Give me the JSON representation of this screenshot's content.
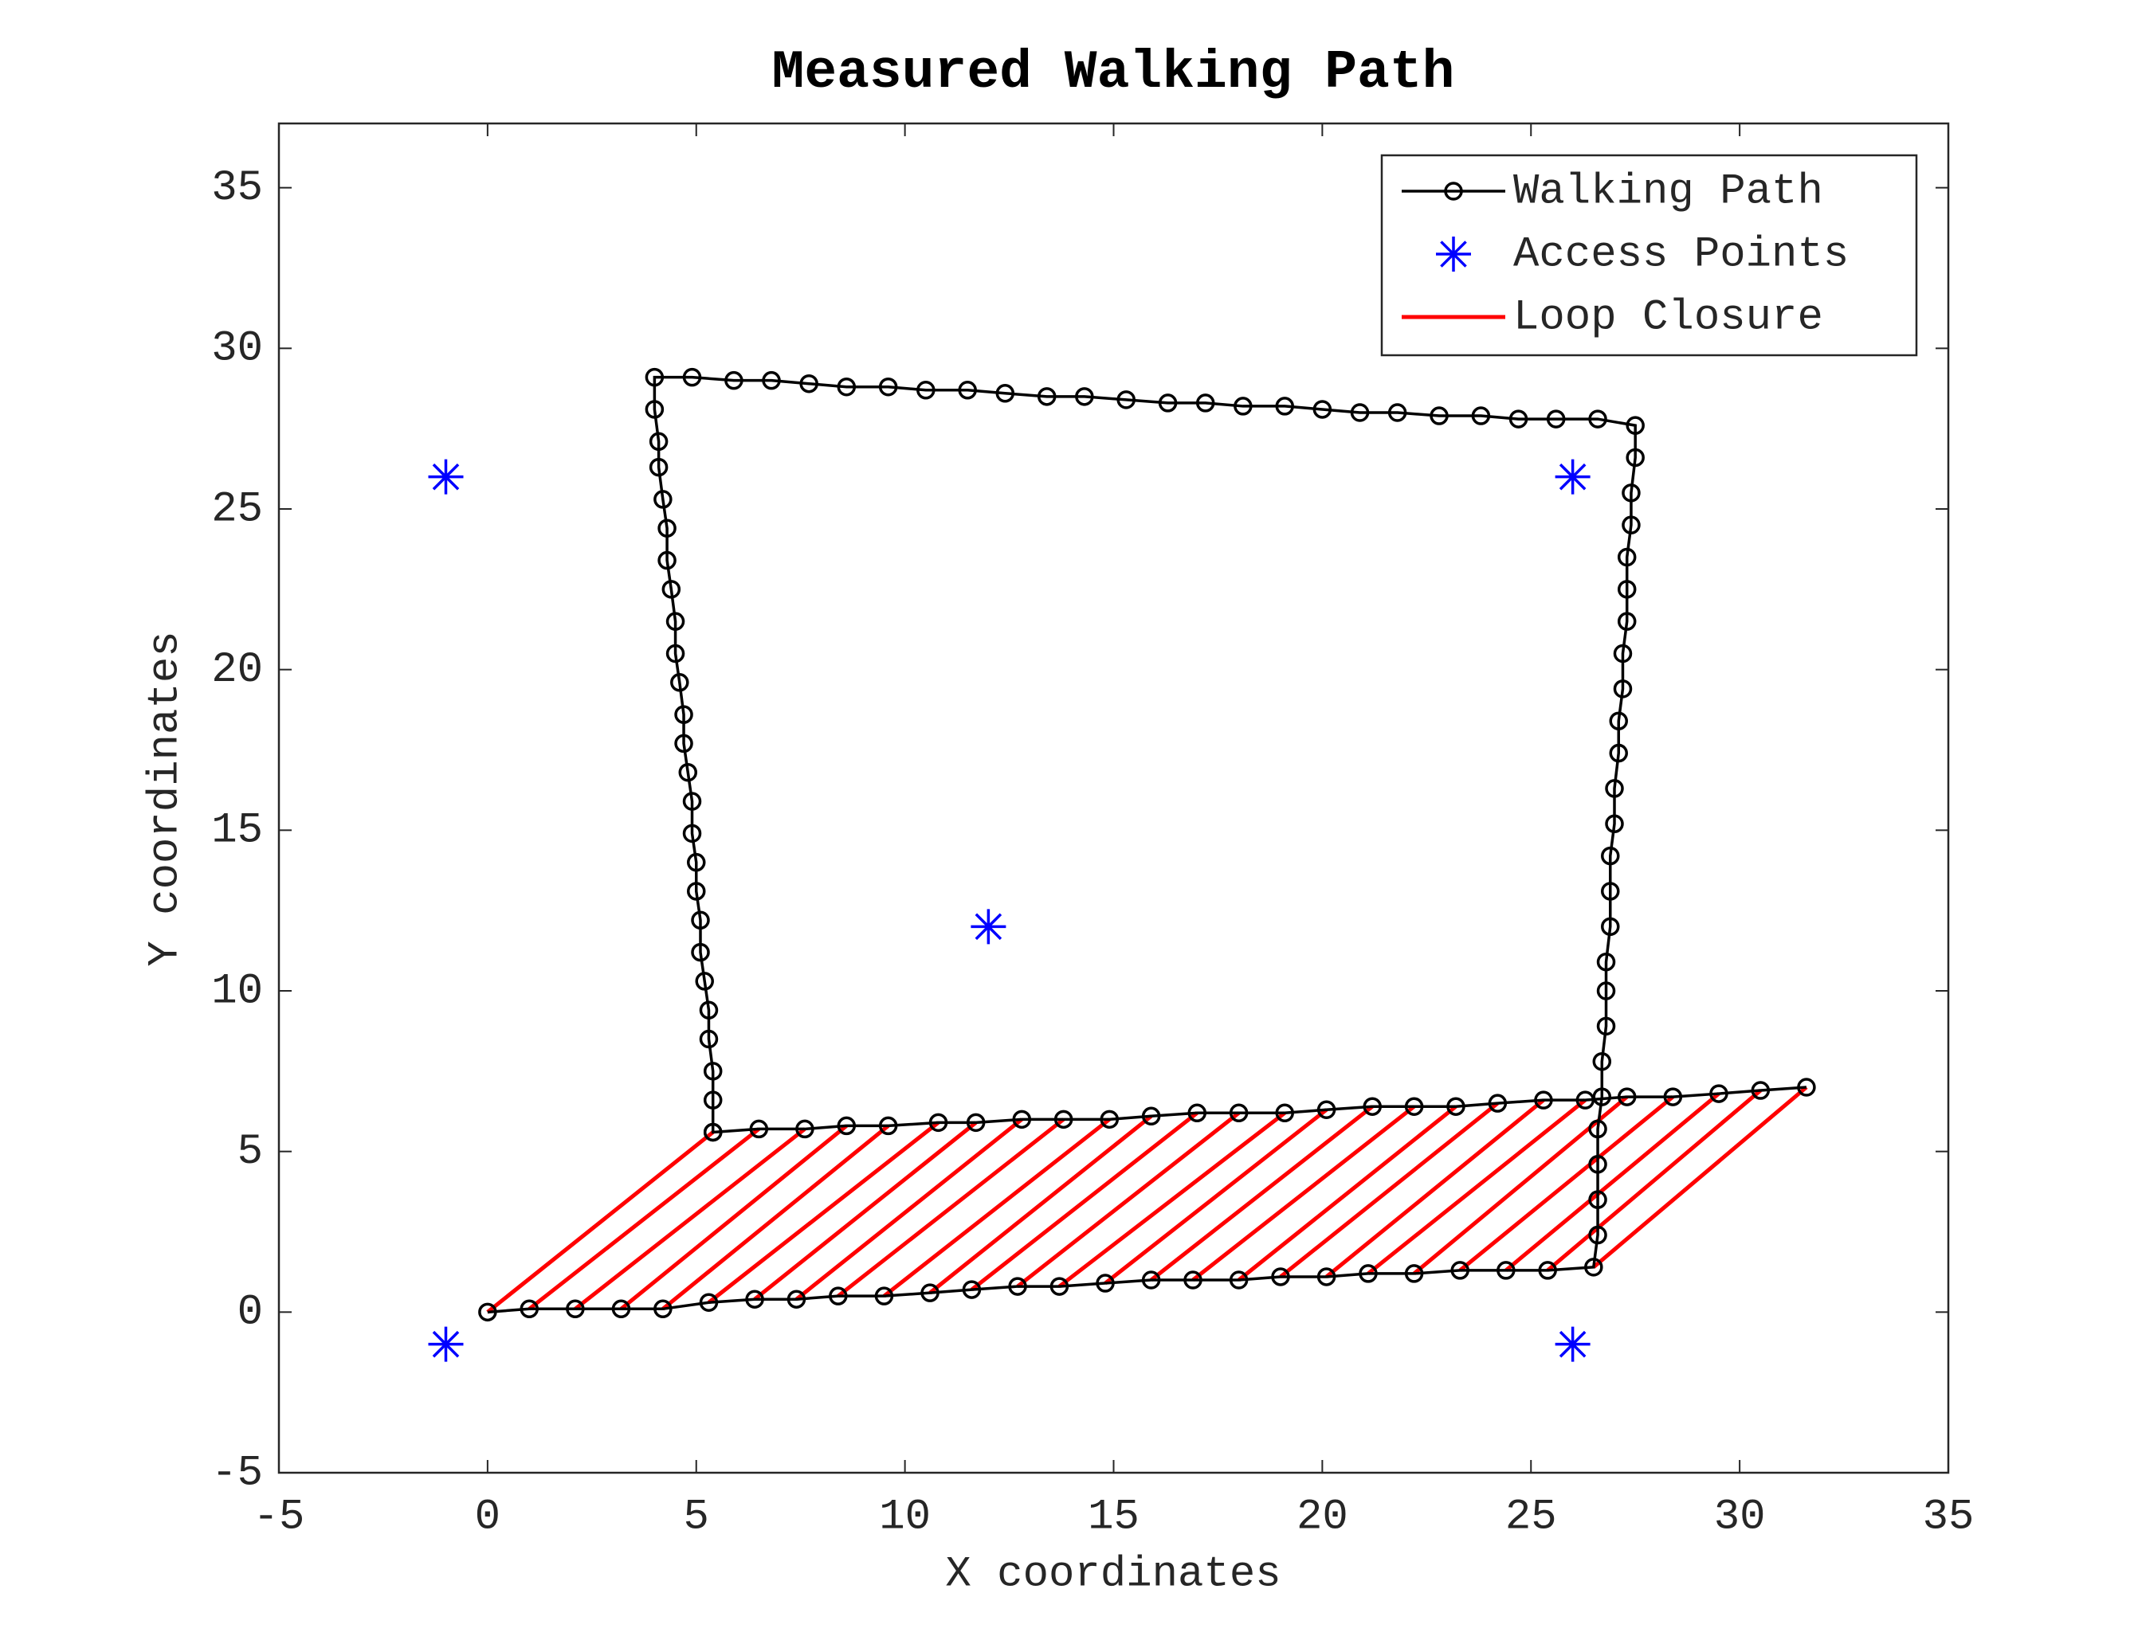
{
  "chart_data": {
    "type": "line",
    "title": "Measured Walking Path",
    "xlabel": "X coordinates",
    "ylabel": "Y coordinates",
    "xlim": [
      -5,
      35
    ],
    "ylim": [
      -5,
      37
    ],
    "xticks": [
      -5,
      0,
      5,
      10,
      15,
      20,
      25,
      30,
      35
    ],
    "yticks": [
      -5,
      0,
      5,
      10,
      15,
      20,
      25,
      30,
      35
    ],
    "grid": false,
    "legend": "upper right",
    "series": [
      {
        "name": "Walking Path",
        "type": "line",
        "marker": "o",
        "color": "#000000",
        "x": [
          0,
          1,
          2.1,
          3.2,
          4.2,
          5.3,
          6.4,
          7.4,
          8.4,
          9.5,
          10.6,
          11.6,
          12.7,
          13.7,
          14.8,
          15.9,
          16.9,
          18,
          19,
          20.1,
          21.1,
          22.2,
          23.3,
          24.4,
          25.4,
          26.5,
          26.6,
          26.6,
          26.6,
          26.6,
          26.7,
          26.7,
          26.8,
          26.8,
          26.8,
          26.9,
          26.9,
          26.9,
          27,
          27,
          27.1,
          27.1,
          27.2,
          27.2,
          27.3,
          27.3,
          27.3,
          27.4,
          27.4,
          27.5,
          27.5,
          26.6,
          25.6,
          24.7,
          23.8,
          22.8,
          21.8,
          20.9,
          20,
          19.1,
          18.1,
          17.2,
          16.3,
          15.3,
          14.3,
          13.4,
          12.4,
          11.5,
          10.5,
          9.6,
          8.6,
          7.7,
          6.8,
          5.9,
          4.9,
          4,
          4,
          4.1,
          4.1,
          4.2,
          4.3,
          4.3,
          4.4,
          4.5,
          4.5,
          4.6,
          4.7,
          4.7,
          4.8,
          4.9,
          4.9,
          5,
          5,
          5.1,
          5.1,
          5.2,
          5.3,
          5.3,
          5.4,
          5.4,
          5.4,
          5.4,
          6.5,
          7.6,
          8.6,
          9.6,
          10.8,
          11.7,
          12.8,
          13.8,
          14.9,
          15.9,
          17,
          18,
          19.1,
          20.1,
          21.2,
          22.2,
          23.2,
          24.2,
          25.3,
          26.3,
          27.3,
          28.4,
          29.5,
          30.5,
          31.6
        ],
        "y": [
          0,
          0.1,
          0.1,
          0.1,
          0.1,
          0.3,
          0.4,
          0.4,
          0.5,
          0.5,
          0.6,
          0.7,
          0.8,
          0.8,
          0.9,
          1,
          1,
          1,
          1.1,
          1.1,
          1.2,
          1.2,
          1.3,
          1.3,
          1.3,
          1.4,
          2.4,
          3.5,
          4.6,
          5.7,
          6.7,
          7.8,
          8.9,
          10,
          10.9,
          12,
          13.1,
          14.2,
          15.2,
          16.3,
          17.4,
          18.4,
          19.4,
          20.5,
          21.5,
          22.5,
          23.5,
          24.5,
          25.5,
          26.6,
          27.6,
          27.8,
          27.8,
          27.8,
          27.9,
          27.9,
          28,
          28,
          28.1,
          28.2,
          28.2,
          28.3,
          28.3,
          28.4,
          28.5,
          28.5,
          28.6,
          28.7,
          28.7,
          28.8,
          28.8,
          28.9,
          29,
          29,
          29.1,
          29.1,
          28.1,
          27.1,
          26.3,
          25.3,
          24.4,
          23.4,
          22.5,
          21.5,
          20.5,
          19.6,
          18.6,
          17.7,
          16.8,
          15.9,
          14.9,
          14,
          13.1,
          12.2,
          11.2,
          10.3,
          9.4,
          8.5,
          7.5,
          6.6,
          5.6,
          5.6,
          5.7,
          5.7,
          5.8,
          5.8,
          5.9,
          5.9,
          6,
          6,
          6,
          6.1,
          6.2,
          6.2,
          6.2,
          6.3,
          6.4,
          6.4,
          6.4,
          6.5,
          6.6,
          6.6,
          6.7,
          6.7,
          6.8,
          6.9,
          7
        ]
      },
      {
        "name": "Access Points",
        "type": "scatter",
        "marker": "*",
        "color": "#0000ff",
        "x": [
          -1,
          26,
          12,
          -1,
          26
        ],
        "y": [
          26,
          26,
          12,
          -1,
          -1
        ]
      },
      {
        "name": "Loop Closure",
        "type": "segments",
        "color": "#ff0000",
        "x1": [
          0,
          1,
          2.1,
          3.2,
          4.2,
          5.3,
          6.4,
          7.4,
          8.4,
          9.5,
          10.6,
          11.6,
          12.7,
          13.7,
          14.8,
          15.9,
          16.9,
          18,
          19,
          20.1,
          21.1,
          22.2,
          23.3,
          24.4,
          25.4,
          26.5
        ],
        "y1": [
          0,
          0.1,
          0.1,
          0.1,
          0.1,
          0.3,
          0.4,
          0.4,
          0.5,
          0.5,
          0.6,
          0.7,
          0.8,
          0.8,
          0.9,
          1,
          1,
          1,
          1.1,
          1.1,
          1.2,
          1.2,
          1.3,
          1.3,
          1.3,
          1.4
        ],
        "x2": [
          5.4,
          6.5,
          7.6,
          8.6,
          9.6,
          10.8,
          11.7,
          12.8,
          13.8,
          14.9,
          15.9,
          17,
          18,
          19.1,
          20.1,
          21.2,
          22.2,
          23.2,
          24.2,
          25.3,
          26.3,
          27.3,
          28.4,
          29.5,
          30.5,
          31.6
        ],
        "y2": [
          5.6,
          5.7,
          5.7,
          5.8,
          5.8,
          5.9,
          5.9,
          6,
          6,
          6,
          6.1,
          6.2,
          6.2,
          6.2,
          6.3,
          6.4,
          6.4,
          6.4,
          6.5,
          6.6,
          6.6,
          6.7,
          6.7,
          6.8,
          6.9,
          7
        ]
      }
    ]
  }
}
